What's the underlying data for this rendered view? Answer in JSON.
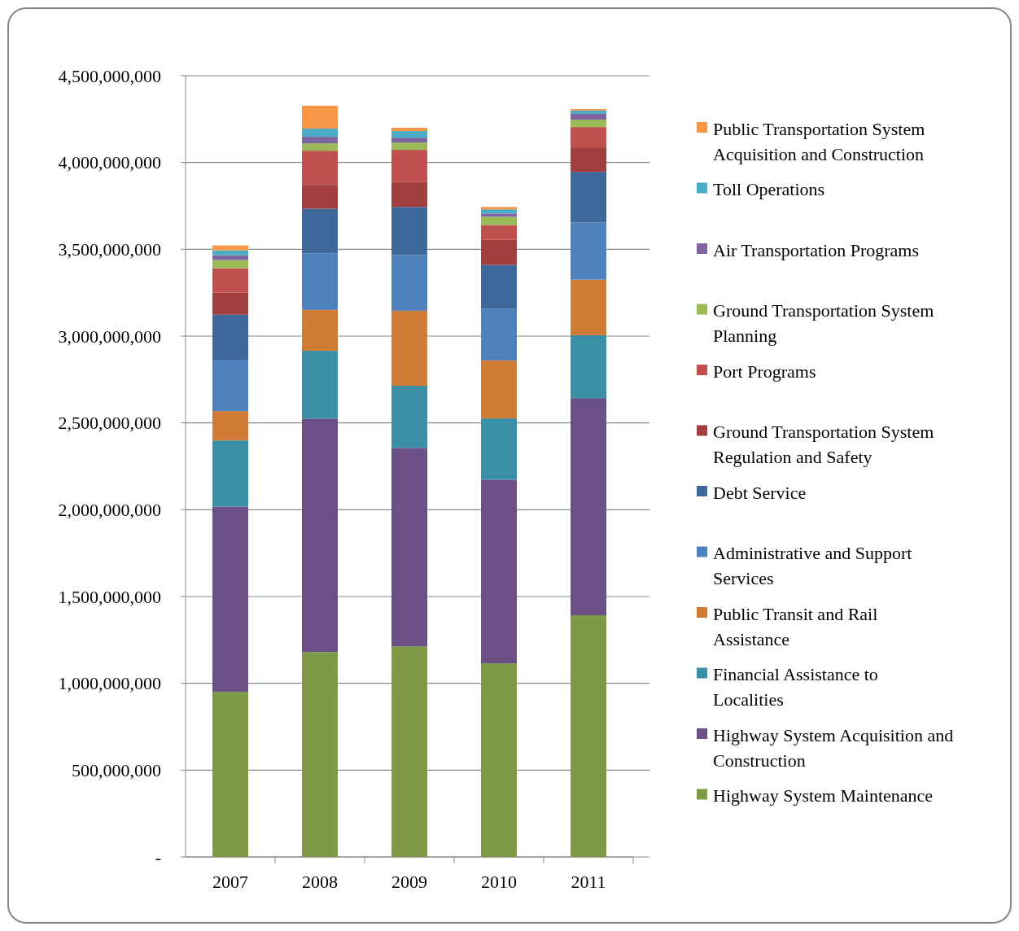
{
  "chart_data": {
    "type": "bar",
    "stacked": true,
    "categories": [
      "2007",
      "2008",
      "2009",
      "2010",
      "2011"
    ],
    "series": [
      {
        "name": "Highway System Maintenance",
        "color": "#7e9a47",
        "values": [
          950000000,
          1180000000,
          1213000000,
          1115000000,
          1392000000
        ]
      },
      {
        "name": "Highway System Acquisition and Construction",
        "color": "#6a5085",
        "values": [
          1068000000,
          1345000000,
          1143000000,
          1058000000,
          1251000000
        ]
      },
      {
        "name": "Financial Assistance to Localities",
        "color": "#3a8ea5",
        "values": [
          381000000,
          391000000,
          358000000,
          353000000,
          362000000
        ]
      },
      {
        "name": "Public Transit and Rail Assistance",
        "color": "#d07b36",
        "values": [
          169000000,
          235000000,
          432000000,
          334000000,
          320000000
        ]
      },
      {
        "name": "Administrative and Support Services",
        "color": "#4f81bd",
        "values": [
          296000000,
          324000000,
          320000000,
          296000000,
          329000000
        ]
      },
      {
        "name": "Debt Service",
        "color": "#3d6899",
        "values": [
          259000000,
          259000000,
          278000000,
          254000000,
          292000000
        ]
      },
      {
        "name": "Ground Transportation System Regulation and Safety",
        "color": "#a03f3d",
        "values": [
          127000000,
          137000000,
          145000000,
          146000000,
          141000000
        ]
      },
      {
        "name": "Port Programs",
        "color": "#c0504d",
        "values": [
          141000000,
          197000000,
          184000000,
          84000000,
          117000000
        ]
      },
      {
        "name": "Ground Transportation System Planning",
        "color": "#9bbb59",
        "values": [
          47000000,
          42000000,
          42000000,
          47000000,
          43000000
        ]
      },
      {
        "name": "Air Transportation Programs",
        "color": "#8064a2",
        "values": [
          28000000,
          38000000,
          28000000,
          19000000,
          33000000
        ]
      },
      {
        "name": "Toll Operations",
        "color": "#4bacc6",
        "values": [
          28000000,
          47000000,
          38000000,
          24000000,
          19000000
        ]
      },
      {
        "name": "Public Transportation System Acquisition and Construction",
        "color": "#f79646",
        "values": [
          28000000,
          132000000,
          19000000,
          14000000,
          9000000
        ]
      }
    ],
    "ylim": [
      0,
      4500000000
    ],
    "yticks": [
      {
        "value": 0,
        "label": "-"
      },
      {
        "value": 500000000,
        "label": "500,000,000"
      },
      {
        "value": 1000000000,
        "label": "1,000,000,000"
      },
      {
        "value": 1500000000,
        "label": "1,500,000,000"
      },
      {
        "value": 2000000000,
        "label": "2,000,000,000"
      },
      {
        "value": 2500000000,
        "label": "2,500,000,000"
      },
      {
        "value": 3000000000,
        "label": "3,000,000,000"
      },
      {
        "value": 3500000000,
        "label": "3,500,000,000"
      },
      {
        "value": 4000000000,
        "label": "4,000,000,000"
      },
      {
        "value": 4500000000,
        "label": "4,500,000,000"
      }
    ],
    "grid": true,
    "legend": "right"
  }
}
